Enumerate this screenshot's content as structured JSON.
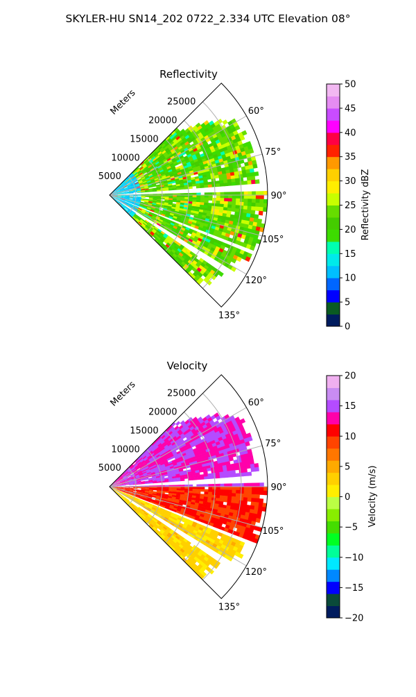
{
  "figure_title": "SKYLER-HU  SN14_202  0722_2.334 UTC Elevation 08°",
  "chart_data": [
    {
      "type": "heatmap",
      "projection": "polar-sector",
      "title": "Reflectivity",
      "radial_axis_label": "Meters",
      "radial_ticks": [
        5000,
        10000,
        15000,
        20000,
        25000
      ],
      "radial_tick_labels": [
        "5000",
        "10000",
        "15000",
        "20000",
        "25000"
      ],
      "rlim": [
        0,
        30000
      ],
      "azimuth_range_deg": [
        45,
        135
      ],
      "azimuth_ticks_deg": [
        60,
        75,
        90,
        105,
        120,
        135
      ],
      "azimuth_tick_labels": [
        "60°",
        "75°",
        "90°",
        "105°",
        "120°",
        "135°"
      ],
      "grid": true,
      "colorbar": {
        "label": "Reflectivity dBZ",
        "range": [
          0,
          50
        ],
        "ticks": [
          0,
          5,
          10,
          15,
          20,
          25,
          30,
          35,
          40,
          45,
          50
        ],
        "tick_labels": [
          "0",
          "5",
          "10",
          "15",
          "20",
          "25",
          "30",
          "35",
          "40",
          "45",
          "50"
        ],
        "colormap": "NWSRef"
      },
      "field_summary": {
        "typical_value_range": [
          15,
          30
        ],
        "scattered_maxima_range": [
          30,
          38
        ],
        "near_radar_values": [
          10,
          15
        ],
        "no_data_wedges_deg": [
          [
            86,
            89
          ],
          [
            111,
            113
          ],
          [
            122,
            124
          ]
        ]
      }
    },
    {
      "type": "heatmap",
      "projection": "polar-sector",
      "title": "Velocity",
      "radial_axis_label": "Meters",
      "radial_ticks": [
        5000,
        10000,
        15000,
        20000,
        25000
      ],
      "radial_tick_labels": [
        "5000",
        "10000",
        "15000",
        "20000",
        "25000"
      ],
      "rlim": [
        0,
        30000
      ],
      "azimuth_range_deg": [
        45,
        135
      ],
      "azimuth_ticks_deg": [
        60,
        75,
        90,
        105,
        120,
        135
      ],
      "azimuth_tick_labels": [
        "60°",
        "75°",
        "90°",
        "105°",
        "120°",
        "135°"
      ],
      "grid": true,
      "colorbar": {
        "label": "Velocity (m/s)",
        "range": [
          -20,
          20
        ],
        "ticks": [
          -20,
          -15,
          -10,
          -5,
          0,
          5,
          10,
          15,
          20
        ],
        "tick_labels": [
          "−20",
          "−15",
          "−10",
          "−5",
          "0",
          "5",
          "10",
          "15",
          "20"
        ],
        "colormap": "NWSVel"
      },
      "field_summary": {
        "azimuth_below_89_deg_value_range": [
          12,
          16
        ],
        "azimuth_89_to_110_deg_value_range": [
          8,
          12
        ],
        "azimuth_110_to_135_deg_value_range": [
          0,
          5
        ],
        "no_data_wedges_deg": [
          [
            86,
            89
          ],
          [
            111,
            113
          ],
          [
            122,
            124
          ]
        ]
      }
    }
  ]
}
